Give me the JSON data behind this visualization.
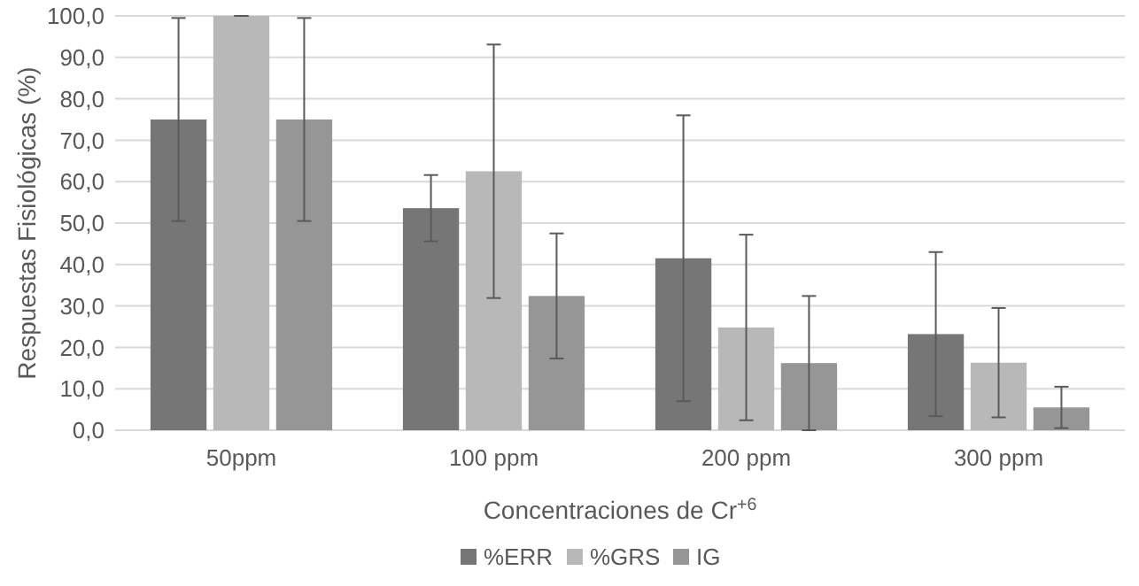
{
  "chart_data": {
    "type": "bar",
    "xlabel": "Concentraciones de Cr$^{+6}$",
    "ylabel": "Respuestas Fisiológicas  (%)",
    "categories": [
      "50ppm",
      "100 ppm",
      "200 ppm",
      "300 ppm"
    ],
    "series": [
      {
        "name": "%ERR",
        "color": "#767676",
        "values": [
          75,
          53.6,
          41.5,
          23.2
        ],
        "errors": [
          24.5,
          8,
          34.5,
          19.8
        ]
      },
      {
        "name": "%GRS",
        "color": "#b8b8b8",
        "values": [
          100,
          62.5,
          24.8,
          16.3
        ],
        "errors": [
          0,
          30.6,
          22.4,
          13.2
        ]
      },
      {
        "name": "IG",
        "color": "#969696",
        "values": [
          75,
          32.4,
          16.2,
          5.5
        ],
        "errors": [
          24.5,
          15.1,
          16.2,
          5.0
        ]
      }
    ],
    "ylim": [
      0,
      100
    ],
    "yticks": [
      {
        "value": 0,
        "label": "0,0"
      },
      {
        "value": 10,
        "label": "10,0"
      },
      {
        "value": 20,
        "label": "20,0"
      },
      {
        "value": 30,
        "label": "30,0"
      },
      {
        "value": 40,
        "label": "40,0"
      },
      {
        "value": 50,
        "label": "50,0"
      },
      {
        "value": 60,
        "label": "60,0"
      },
      {
        "value": 70,
        "label": "70,0"
      },
      {
        "value": 80,
        "label": "80,0"
      },
      {
        "value": 90,
        "label": "90,0"
      },
      {
        "value": 100,
        "label": "100,0"
      }
    ],
    "grid": "y",
    "legend": "bottom"
  }
}
